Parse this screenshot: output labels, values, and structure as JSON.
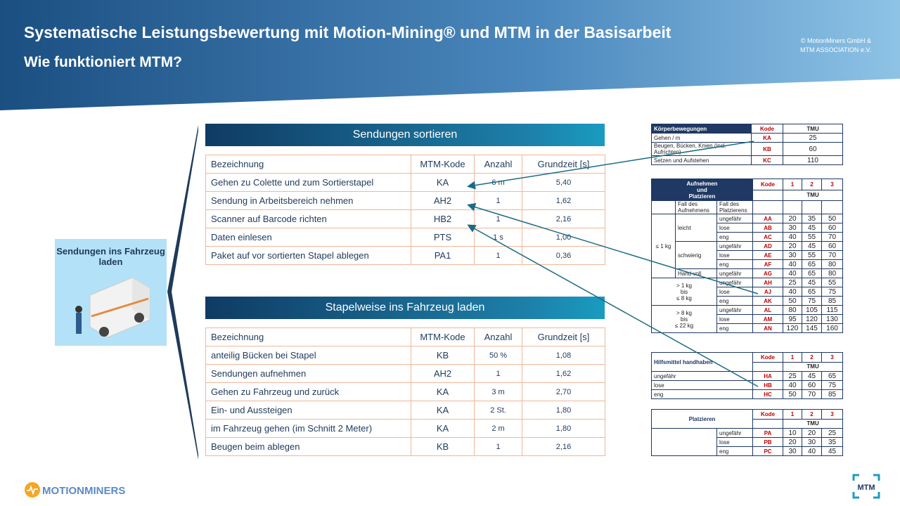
{
  "header": {
    "title": "Systematische Leistungsbewertung mit Motion-Mining® und MTM in der Basisarbeit",
    "subtitle": "Wie funktioniert MTM?",
    "copyright": [
      "© MotionMiners GmbH &",
      "MTM ASSOCIATION e.V."
    ]
  },
  "card": {
    "label": "Sendungen ins Fahrzeug laden"
  },
  "section1": {
    "title": "Sendungen sortieren",
    "headers": [
      "Bezeichnung",
      "MTM-Kode",
      "Anzahl",
      "Grundzeit [s]"
    ],
    "rows": [
      [
        "Gehen zu Colette und zum Sortierstapel",
        "KA",
        "6 m",
        "5,40"
      ],
      [
        "Sendung in Arbeitsbereich nehmen",
        "AH2",
        "1",
        "1,62"
      ],
      [
        "Scanner auf Barcode richten",
        "HB2",
        "1",
        "2,16"
      ],
      [
        "Daten einlesen",
        "PTS",
        "1 s",
        "1,00"
      ],
      [
        "Paket auf vor sortierten Stapel ablegen",
        "PA1",
        "1",
        "0,36"
      ]
    ]
  },
  "section2": {
    "title": "Stapelweise ins Fahrzeug laden",
    "headers": [
      "Bezeichnung",
      "MTM-Kode",
      "Anzahl",
      "Grundzeit [s]"
    ],
    "rows": [
      [
        "anteilig Bücken bei Stapel",
        "KB",
        "50 %",
        "1,08"
      ],
      [
        "Sendungen aufnehmen",
        "AH2",
        "1",
        "1,62"
      ],
      [
        "Gehen zu Fahrzeug und zurück",
        "KA",
        "3 m",
        "2,70"
      ],
      [
        "Ein- und Aussteigen",
        "KA",
        "2 St.",
        "1,80"
      ],
      [
        "im Fahrzeug gehen (im Schnitt 2 Meter)",
        "KA",
        "2 m",
        "1,80"
      ],
      [
        "Beugen beim ablegen",
        "KB",
        "1",
        "2,16"
      ]
    ]
  },
  "koerper": {
    "headers": [
      "Körperbewegungen",
      "Kode",
      "TMU"
    ],
    "rows": [
      [
        "Gehen / m",
        "KA",
        "25"
      ],
      [
        "Beugen, Bücken, Knien (incl. Aufrichten)",
        "KB",
        "60"
      ],
      [
        "Setzen und Aufstehen",
        "KC",
        "110"
      ]
    ]
  },
  "aufnehmen": {
    "title": "Aufnehmen\nund\nPlatzieren",
    "kode": "Kode",
    "cols": [
      "1",
      "2",
      "3"
    ],
    "tmu": "TMU",
    "fall_aufnehmen": "Fall des Aufnehmens",
    "fall_platzieren": "Fall des Platzierens",
    "groups": [
      {
        "weight": "≤ 1 kg",
        "sub": [
          {
            "label": "leicht",
            "rows": [
              [
                "ungefähr",
                "AA",
                "20",
                "35",
                "50"
              ],
              [
                "lose",
                "AB",
                "30",
                "45",
                "60"
              ],
              [
                "eng",
                "AC",
                "40",
                "55",
                "70"
              ]
            ]
          },
          {
            "label": "schwierig",
            "rows": [
              [
                "ungefähr",
                "AD",
                "20",
                "45",
                "60"
              ],
              [
                "lose",
                "AE",
                "30",
                "55",
                "70"
              ],
              [
                "eng",
                "AF",
                "40",
                "65",
                "80"
              ]
            ]
          },
          {
            "label": "Hand voll",
            "rows": [
              [
                "ungefähr",
                "AG",
                "40",
                "65",
                "80"
              ]
            ]
          }
        ]
      },
      {
        "weight": "> 1 kg\nbis\n≤ 8 kg",
        "rows": [
          [
            "ungefähr",
            "AH",
            "25",
            "45",
            "55"
          ],
          [
            "lose",
            "AJ",
            "40",
            "65",
            "75"
          ],
          [
            "eng",
            "AK",
            "50",
            "75",
            "85"
          ]
        ]
      },
      {
        "weight": "> 8 kg\nbis\n≤ 22 kg",
        "rows": [
          [
            "ungefähr",
            "AL",
            "80",
            "105",
            "115"
          ],
          [
            "lose",
            "AM",
            "95",
            "120",
            "130"
          ],
          [
            "eng",
            "AN",
            "120",
            "145",
            "160"
          ]
        ]
      }
    ]
  },
  "hilfsmittel": {
    "title": "Hilfsmittel handhaben",
    "kode": "Kode",
    "cols": [
      "1",
      "2",
      "3"
    ],
    "tmu": "TMU",
    "rows": [
      [
        "ungefähr",
        "HA",
        "25",
        "45",
        "65"
      ],
      [
        "lose",
        "HB",
        "40",
        "60",
        "75"
      ],
      [
        "eng",
        "HC",
        "50",
        "70",
        "85"
      ]
    ]
  },
  "platzieren": {
    "title": "Platzieren",
    "kode": "Kode",
    "cols": [
      "1",
      "2",
      "3"
    ],
    "tmu": "TMU",
    "rows": [
      [
        "ungefähr",
        "PA",
        "10",
        "20",
        "25"
      ],
      [
        "lose",
        "PB",
        "20",
        "30",
        "35"
      ],
      [
        "eng",
        "PC",
        "30",
        "40",
        "45"
      ]
    ]
  },
  "footer": {
    "logo_left": "MOTIONMINERS",
    "logo_right": "MTM"
  }
}
